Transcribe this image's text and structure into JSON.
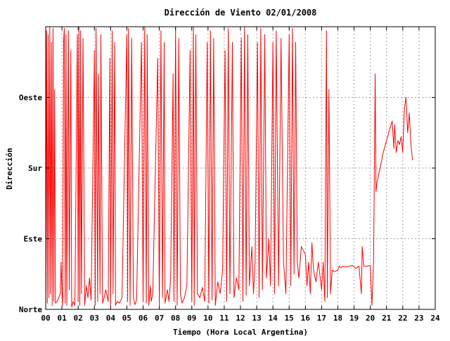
{
  "chart_data": {
    "type": "line",
    "title": "Dirección de Viento 02/01/2008",
    "xlabel": "Tiempo (Hora Local Argentina)",
    "ylabel": "Dirección",
    "x_unit": "hours",
    "xlim": [
      0,
      24
    ],
    "ylim": [
      0,
      360
    ],
    "x_ticks": [
      {
        "value": 0,
        "label": "00"
      },
      {
        "value": 1,
        "label": "01"
      },
      {
        "value": 2,
        "label": "02"
      },
      {
        "value": 3,
        "label": "03"
      },
      {
        "value": 4,
        "label": "04"
      },
      {
        "value": 5,
        "label": "05"
      },
      {
        "value": 6,
        "label": "06"
      },
      {
        "value": 7,
        "label": "07"
      },
      {
        "value": 8,
        "label": "08"
      },
      {
        "value": 9,
        "label": "09"
      },
      {
        "value": 10,
        "label": "10"
      },
      {
        "value": 11,
        "label": "11"
      },
      {
        "value": 12,
        "label": "12"
      },
      {
        "value": 13,
        "label": "13"
      },
      {
        "value": 14,
        "label": "14"
      },
      {
        "value": 15,
        "label": "15"
      },
      {
        "value": 16,
        "label": "16"
      },
      {
        "value": 17,
        "label": "17"
      },
      {
        "value": 18,
        "label": "18"
      },
      {
        "value": 19,
        "label": "19"
      },
      {
        "value": 20,
        "label": "20"
      },
      {
        "value": 21,
        "label": "21"
      },
      {
        "value": 22,
        "label": "22"
      },
      {
        "value": 23,
        "label": "23"
      },
      {
        "value": 24,
        "label": "24"
      }
    ],
    "y_ticks": [
      {
        "value": 0,
        "label": "Norte"
      },
      {
        "value": 90,
        "label": "Este"
      },
      {
        "value": 180,
        "label": "Sur"
      },
      {
        "value": 270,
        "label": "Oeste"
      }
    ],
    "grid": true,
    "series": [
      {
        "color": "#ff0000",
        "points": [
          [
            0.0,
            12
          ],
          [
            0.05,
            355
          ],
          [
            0.1,
            8
          ],
          [
            0.15,
            350
          ],
          [
            0.2,
            15
          ],
          [
            0.25,
            360
          ],
          [
            0.3,
            20
          ],
          [
            0.35,
            340
          ],
          [
            0.4,
            5
          ],
          [
            0.45,
            358
          ],
          [
            0.5,
            10
          ],
          [
            0.55,
            280
          ],
          [
            0.6,
            8
          ],
          [
            0.7,
            10
          ],
          [
            0.8,
            15
          ],
          [
            0.9,
            20
          ],
          [
            0.95,
            60
          ],
          [
            1.0,
            22
          ],
          [
            1.05,
            5
          ],
          [
            1.1,
            340
          ],
          [
            1.15,
            358
          ],
          [
            1.2,
            8
          ],
          [
            1.25,
            350
          ],
          [
            1.3,
            5
          ],
          [
            1.4,
            355
          ],
          [
            1.45,
            25
          ],
          [
            1.55,
            330
          ],
          [
            1.6,
            3
          ],
          [
            1.7,
            10
          ],
          [
            1.8,
            5
          ],
          [
            1.95,
            350
          ],
          [
            2.0,
            10
          ],
          [
            2.05,
            360
          ],
          [
            2.1,
            5
          ],
          [
            2.15,
            355
          ],
          [
            2.2,
            20
          ],
          [
            2.3,
            345
          ],
          [
            2.4,
            5
          ],
          [
            2.5,
            30
          ],
          [
            2.6,
            15
          ],
          [
            2.7,
            40
          ],
          [
            2.8,
            12
          ],
          [
            3.0,
            330
          ],
          [
            3.05,
            5
          ],
          [
            3.1,
            358
          ],
          [
            3.2,
            10
          ],
          [
            3.25,
            300
          ],
          [
            3.35,
            20
          ],
          [
            3.4,
            350
          ],
          [
            3.5,
            8
          ],
          [
            3.6,
            15
          ],
          [
            3.7,
            25
          ],
          [
            3.85,
            10
          ],
          [
            3.95,
            320
          ],
          [
            4.0,
            5
          ],
          [
            4.1,
            355
          ],
          [
            4.15,
            20
          ],
          [
            4.25,
            340
          ],
          [
            4.3,
            5
          ],
          [
            4.4,
            10
          ],
          [
            4.55,
            8
          ],
          [
            4.7,
            15
          ],
          [
            5.0,
            350
          ],
          [
            5.05,
            10
          ],
          [
            5.1,
            358
          ],
          [
            5.2,
            5
          ],
          [
            5.3,
            345
          ],
          [
            5.4,
            15
          ],
          [
            5.5,
            6
          ],
          [
            5.6,
            12
          ],
          [
            5.9,
            340
          ],
          [
            6.0,
            10
          ],
          [
            6.1,
            360
          ],
          [
            6.2,
            8
          ],
          [
            6.25,
            350
          ],
          [
            6.35,
            5
          ],
          [
            6.45,
            30
          ],
          [
            6.5,
            10
          ],
          [
            6.6,
            20
          ],
          [
            6.9,
            320
          ],
          [
            7.0,
            5
          ],
          [
            7.1,
            355
          ],
          [
            7.2,
            15
          ],
          [
            7.3,
            340
          ],
          [
            7.35,
            8
          ],
          [
            7.5,
            25
          ],
          [
            7.6,
            10
          ],
          [
            7.7,
            40
          ],
          [
            7.85,
            300
          ],
          [
            7.9,
            10
          ],
          [
            8.0,
            358
          ],
          [
            8.1,
            5
          ],
          [
            8.2,
            345
          ],
          [
            8.3,
            20
          ],
          [
            8.4,
            8
          ],
          [
            8.55,
            15
          ],
          [
            8.7,
            30
          ],
          [
            8.9,
            330
          ],
          [
            9.0,
            10
          ],
          [
            9.1,
            360
          ],
          [
            9.15,
            5
          ],
          [
            9.25,
            350
          ],
          [
            9.35,
            20
          ],
          [
            9.5,
            15
          ],
          [
            9.65,
            28
          ],
          [
            9.8,
            10
          ],
          [
            9.95,
            340
          ],
          [
            10.05,
            8
          ],
          [
            10.15,
            355
          ],
          [
            10.25,
            12
          ],
          [
            10.35,
            345
          ],
          [
            10.45,
            5
          ],
          [
            10.6,
            35
          ],
          [
            10.75,
            20
          ],
          [
            10.9,
            50
          ],
          [
            11.05,
            330
          ],
          [
            11.15,
            10
          ],
          [
            11.25,
            358
          ],
          [
            11.35,
            20
          ],
          [
            11.5,
            340
          ],
          [
            11.6,
            15
          ],
          [
            11.75,
            40
          ],
          [
            11.9,
            25
          ],
          [
            12.05,
            345
          ],
          [
            12.15,
            10
          ],
          [
            12.25,
            360
          ],
          [
            12.35,
            18
          ],
          [
            12.45,
            350
          ],
          [
            12.55,
            30
          ],
          [
            12.7,
            80
          ],
          [
            12.8,
            20
          ],
          [
            12.9,
            60
          ],
          [
            13.05,
            340
          ],
          [
            13.15,
            15
          ],
          [
            13.25,
            358
          ],
          [
            13.35,
            25
          ],
          [
            13.5,
            350
          ],
          [
            13.6,
            40
          ],
          [
            13.75,
            90
          ],
          [
            13.85,
            30
          ],
          [
            14.0,
            340
          ],
          [
            14.1,
            20
          ],
          [
            14.2,
            355
          ],
          [
            14.35,
            30
          ],
          [
            14.5,
            345
          ],
          [
            14.65,
            60
          ],
          [
            14.8,
            20
          ],
          [
            15.0,
            350
          ],
          [
            15.1,
            30
          ],
          [
            15.2,
            358
          ],
          [
            15.3,
            45
          ],
          [
            15.4,
            340
          ],
          [
            15.5,
            60
          ],
          [
            15.6,
            40
          ],
          [
            15.75,
            80
          ],
          [
            16.0,
            70
          ],
          [
            16.1,
            30
          ],
          [
            16.2,
            60
          ],
          [
            16.3,
            20
          ],
          [
            16.4,
            85
          ],
          [
            16.5,
            50
          ],
          [
            16.65,
            35
          ],
          [
            16.8,
            60
          ],
          [
            17.0,
            25
          ],
          [
            17.1,
            60
          ],
          [
            17.2,
            10
          ],
          [
            17.3,
            355
          ],
          [
            17.35,
            15
          ],
          [
            17.45,
            280
          ],
          [
            17.55,
            20
          ],
          [
            17.65,
            50
          ],
          [
            17.8,
            48
          ],
          [
            18.0,
            50
          ],
          [
            18.1,
            55
          ],
          [
            18.2,
            53
          ],
          [
            18.3,
            55
          ],
          [
            18.5,
            54
          ],
          [
            18.7,
            55
          ],
          [
            18.9,
            56
          ],
          [
            19.1,
            52
          ],
          [
            19.3,
            55
          ],
          [
            19.45,
            20
          ],
          [
            19.5,
            80
          ],
          [
            19.6,
            55
          ],
          [
            19.8,
            55
          ],
          [
            20.0,
            56
          ],
          [
            20.1,
            5
          ],
          [
            20.2,
            60
          ],
          [
            20.3,
            300
          ],
          [
            20.35,
            150
          ],
          [
            20.4,
            160
          ],
          [
            20.6,
            180
          ],
          [
            20.8,
            200
          ],
          [
            21.0,
            215
          ],
          [
            21.2,
            230
          ],
          [
            21.35,
            240
          ],
          [
            21.45,
            205
          ],
          [
            21.5,
            235
          ],
          [
            21.6,
            200
          ],
          [
            21.7,
            215
          ],
          [
            21.8,
            210
          ],
          [
            21.9,
            220
          ],
          [
            22.0,
            200
          ],
          [
            22.1,
            255
          ],
          [
            22.2,
            270
          ],
          [
            22.3,
            225
          ],
          [
            22.4,
            250
          ],
          [
            22.5,
            210
          ],
          [
            22.6,
            190
          ]
        ]
      }
    ]
  }
}
